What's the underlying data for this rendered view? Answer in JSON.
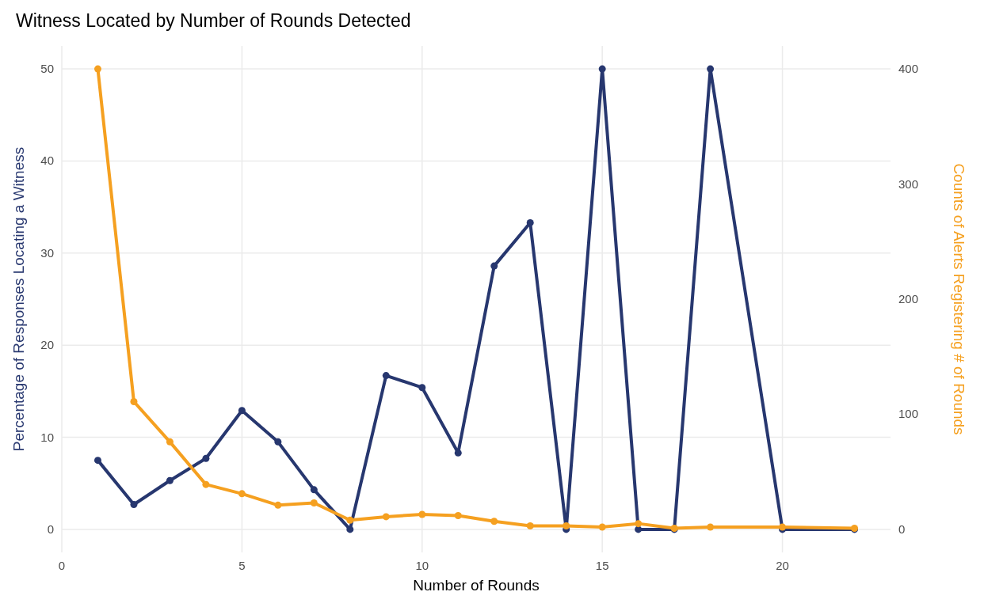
{
  "chart_data": {
    "type": "line",
    "title": "Witness Located by Number of Rounds Detected",
    "xlabel": "Number of Rounds",
    "ylabel": "Percentage of Responses Locating a Witness",
    "y2label": "Counts of Alerts Registering # of Rounds",
    "x": [
      1,
      2,
      3,
      4,
      5,
      6,
      7,
      8,
      9,
      10,
      11,
      12,
      13,
      14,
      15,
      16,
      17,
      18,
      20,
      22
    ],
    "series": [
      {
        "color": "#27376f",
        "values": [
          7.5,
          2.7,
          5.3,
          7.7,
          12.9,
          9.5,
          4.3,
          0,
          16.7,
          15.4,
          8.3,
          28.6,
          33.3,
          0,
          50,
          0,
          0,
          50,
          0,
          0
        ]
      },
      {
        "color": "#f5a020",
        "axis": "y2",
        "values": [
          400,
          111,
          76,
          39,
          31,
          21,
          23,
          8,
          11,
          13,
          12,
          7,
          3,
          3,
          2,
          5,
          1,
          2,
          2,
          1
        ]
      }
    ],
    "xlim": [
      0,
      23
    ],
    "xticks": [
      0,
      5,
      10,
      15,
      20
    ],
    "ylim": [
      -2.5,
      52.5
    ],
    "yticks": [
      0,
      10,
      20,
      30,
      40,
      50
    ],
    "y2lim": [
      -20,
      420
    ],
    "y2ticks": [
      0,
      100,
      200,
      300,
      400
    ],
    "grid": true,
    "marker": "circle",
    "line_style": "solid"
  }
}
